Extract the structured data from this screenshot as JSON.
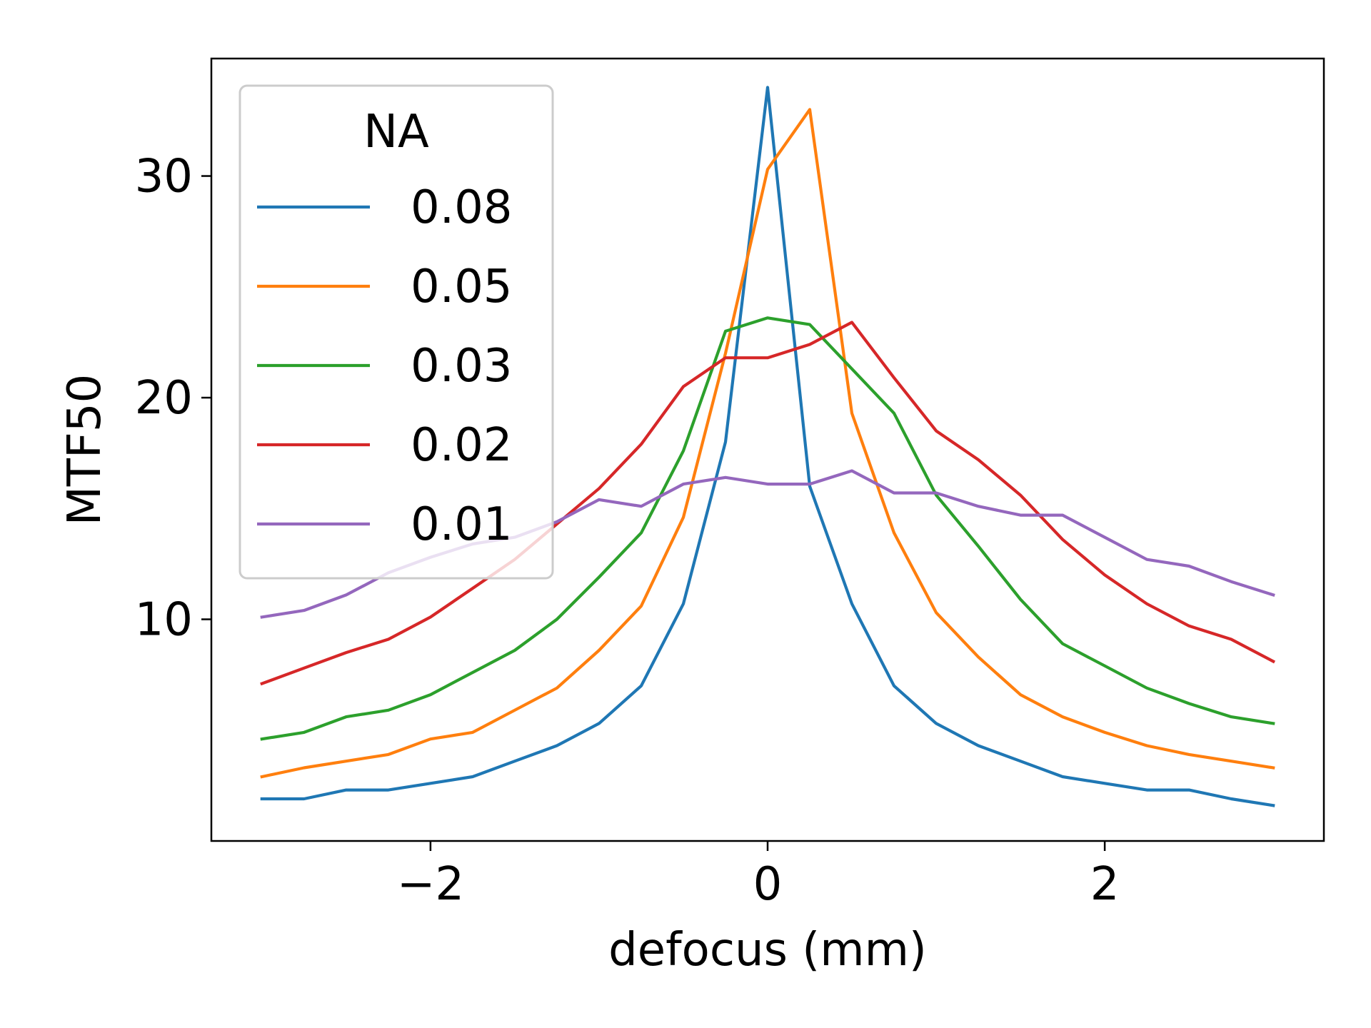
{
  "chart_data": {
    "type": "line",
    "title": "",
    "xlabel": "defocus (mm)",
    "ylabel": "MTF50",
    "xlim": [
      -3.3,
      3.3
    ],
    "ylim": [
      0,
      35.3
    ],
    "xticks": [
      -2,
      0,
      2
    ],
    "xtick_labels": [
      "−2",
      "0",
      "2"
    ],
    "yticks": [
      10,
      20,
      30
    ],
    "ytick_labels": [
      "10",
      "20",
      "30"
    ],
    "grid": false,
    "legend": {
      "title": "NA",
      "placement": "upper-left"
    },
    "x": [
      -3.0,
      -2.75,
      -2.5,
      -2.25,
      -2.0,
      -1.75,
      -1.5,
      -1.25,
      -1.0,
      -0.75,
      -0.5,
      -0.25,
      0.0,
      0.25,
      0.5,
      0.75,
      1.0,
      1.25,
      1.5,
      1.75,
      2.0,
      2.25,
      2.5,
      2.75,
      3.0
    ],
    "series": [
      {
        "name": "0.08",
        "color": "#1f77b4",
        "values": [
          1.9,
          1.9,
          2.3,
          2.3,
          2.6,
          2.9,
          3.6,
          4.3,
          5.3,
          7.0,
          10.7,
          18.0,
          34.0,
          16.0,
          10.7,
          7.0,
          5.3,
          4.3,
          3.6,
          2.9,
          2.6,
          2.3,
          2.3,
          1.9,
          1.6
        ]
      },
      {
        "name": "0.05",
        "color": "#ff7f0e",
        "values": [
          2.9,
          3.3,
          3.6,
          3.9,
          4.6,
          4.9,
          5.9,
          6.9,
          8.6,
          10.6,
          14.6,
          22.0,
          30.3,
          33.0,
          19.3,
          13.9,
          10.3,
          8.3,
          6.6,
          5.6,
          4.9,
          4.3,
          3.9,
          3.6,
          3.3
        ]
      },
      {
        "name": "0.03",
        "color": "#2ca02c",
        "values": [
          4.6,
          4.9,
          5.6,
          5.9,
          6.6,
          7.6,
          8.6,
          10.0,
          11.9,
          13.9,
          17.6,
          23.0,
          23.6,
          23.3,
          21.3,
          19.3,
          15.6,
          13.3,
          10.9,
          8.9,
          7.9,
          6.9,
          6.2,
          5.6,
          5.3
        ]
      },
      {
        "name": "0.02",
        "color": "#d62728",
        "values": [
          7.1,
          7.8,
          8.5,
          9.1,
          10.1,
          11.4,
          12.7,
          14.3,
          15.9,
          17.9,
          20.5,
          21.8,
          21.8,
          22.4,
          23.4,
          20.9,
          18.5,
          17.2,
          15.6,
          13.6,
          12.0,
          10.7,
          9.7,
          9.1,
          8.1
        ]
      },
      {
        "name": "0.01",
        "color": "#9467bd",
        "values": [
          10.1,
          10.4,
          11.1,
          12.1,
          12.8,
          13.4,
          13.7,
          14.4,
          15.4,
          15.1,
          16.1,
          16.4,
          16.1,
          16.1,
          16.7,
          15.7,
          15.7,
          15.1,
          14.7,
          14.7,
          13.7,
          12.7,
          12.4,
          11.7,
          11.1
        ]
      }
    ]
  }
}
